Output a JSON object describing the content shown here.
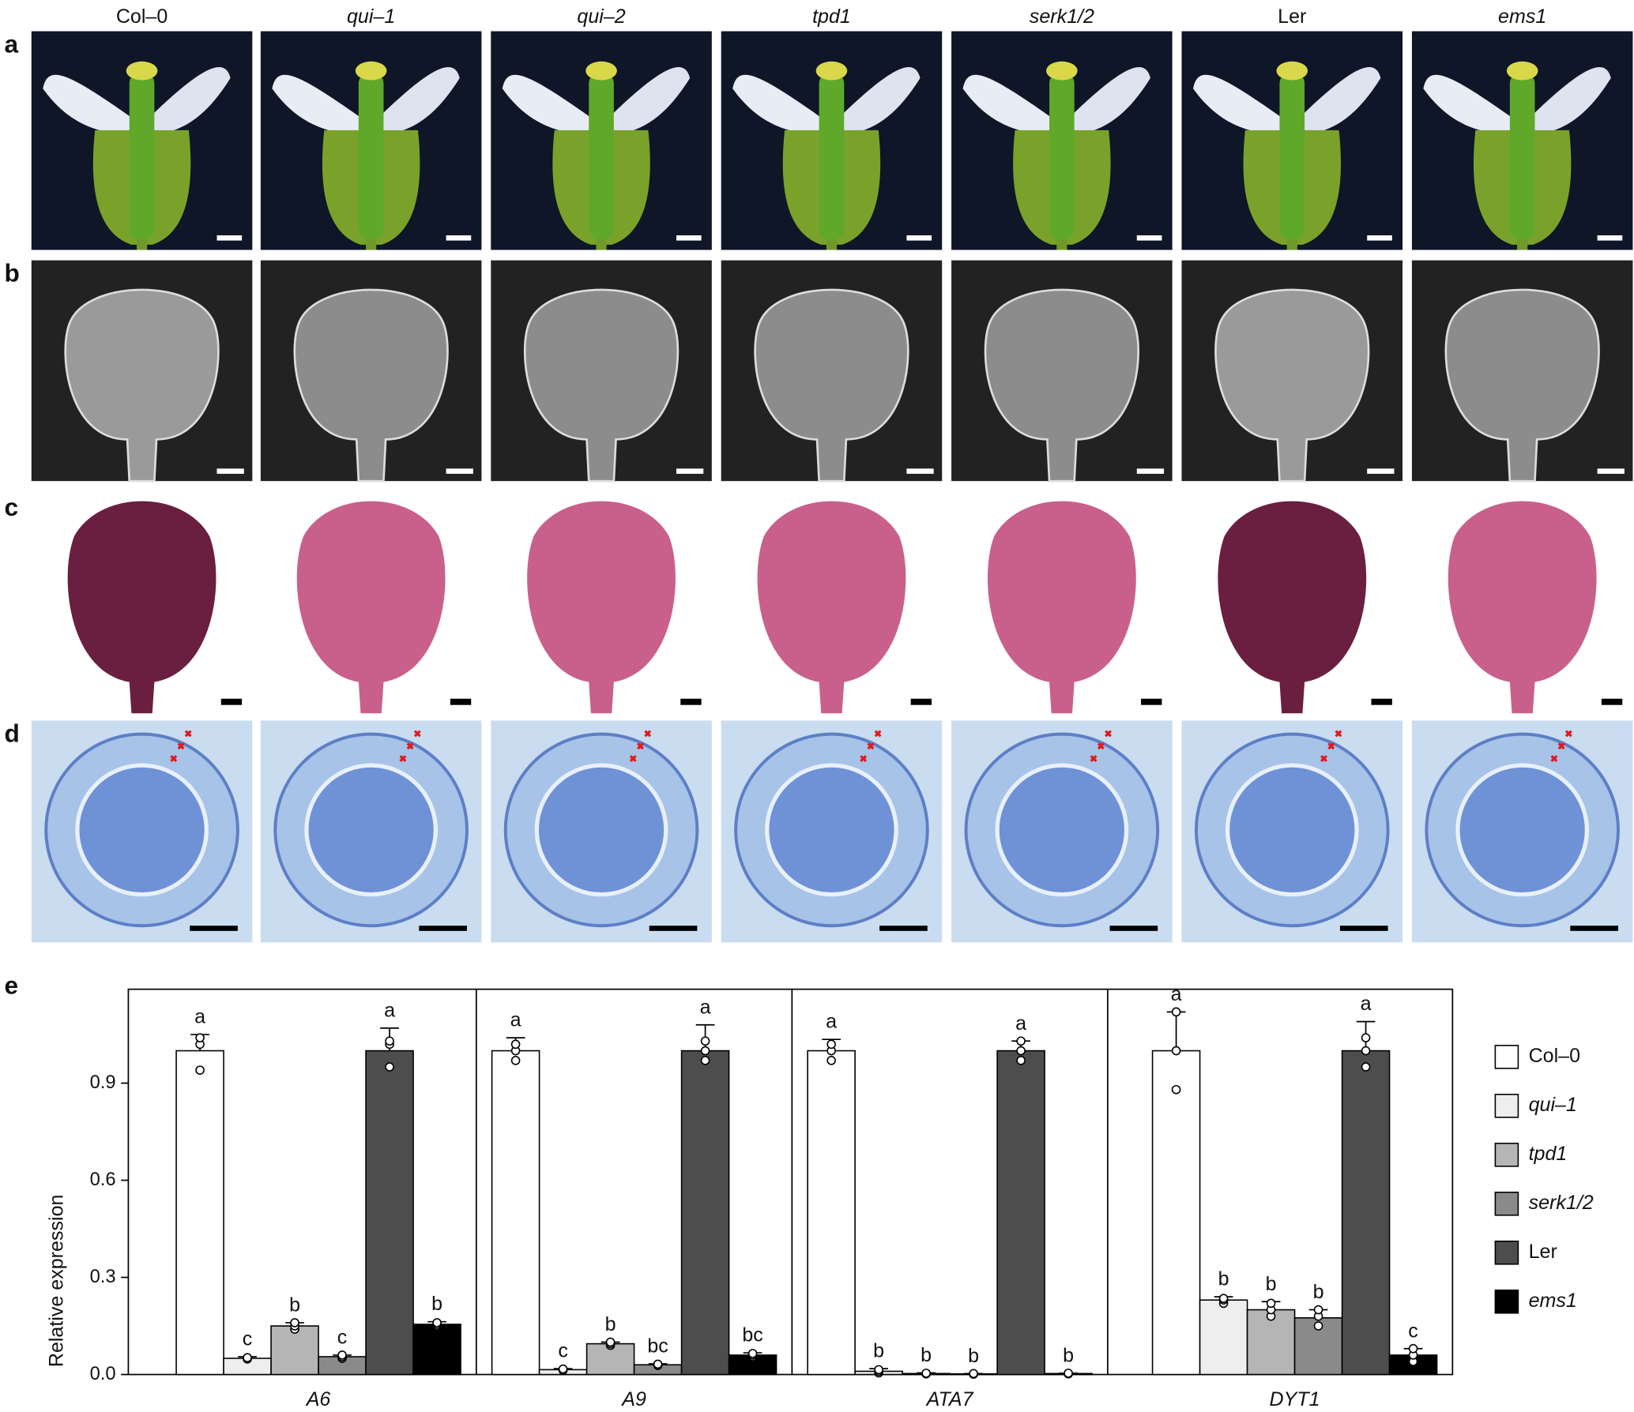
{
  "columns": [
    "Col–0",
    "qui–1",
    "qui–2",
    "tpd1",
    "serk1/2",
    "Ler",
    "ems1"
  ],
  "panels": [
    "a",
    "b",
    "c",
    "d",
    "e"
  ],
  "chart_data": {
    "type": "bar",
    "y_label": "Relative expression",
    "categories": [
      "A6",
      "A9",
      "ATA7",
      "DYT1"
    ],
    "ylim": [
      0,
      1.19
    ],
    "yticks": [
      {
        "value": 0,
        "label": "0.0"
      },
      0.3,
      0.6,
      0.9
    ],
    "legend": "right",
    "series": [
      {
        "name": "Col–0",
        "color": "#ffffff",
        "values": [
          1.0,
          1.0,
          1.0,
          1.0
        ],
        "errors": [
          0.05,
          0.04,
          0.035,
          0.12
        ],
        "points": [
          [
            0.94,
            1.02,
            1.04
          ],
          [
            0.97,
            1.0,
            1.02
          ],
          [
            0.97,
            1.0,
            1.02
          ],
          [
            0.88,
            1.0,
            1.12
          ]
        ],
        "significance": [
          "a",
          "a",
          "a",
          "a"
        ]
      },
      {
        "name": "qui–1",
        "color": "#eeeeee",
        "values": [
          0.05,
          0.015,
          0.01,
          0.23
        ],
        "errors": [
          0.005,
          0.003,
          0.008,
          0.01
        ],
        "points": [
          [
            0.048,
            0.05,
            0.052
          ],
          [
            0.013,
            0.015,
            0.017
          ],
          [
            0.005,
            0.01,
            0.015
          ],
          [
            0.22,
            0.23,
            0.235
          ]
        ],
        "significance": [
          "c",
          "c",
          "b",
          "b"
        ]
      },
      {
        "name": "tpd1",
        "color": "#b5b5b5",
        "values": [
          0.15,
          0.095,
          0.003,
          0.2
        ],
        "errors": [
          0.01,
          0.005,
          0.002,
          0.025
        ],
        "points": [
          [
            0.14,
            0.15,
            0.16
          ],
          [
            0.09,
            0.095,
            0.1
          ],
          [
            0.002,
            0.003,
            0.004
          ],
          [
            0.18,
            0.2,
            0.22
          ]
        ],
        "significance": [
          "b",
          "b",
          "b",
          "b"
        ]
      },
      {
        "name": "serk1/2",
        "color": "#8a8a8a",
        "values": [
          0.055,
          0.03,
          0.002,
          0.175
        ],
        "errors": [
          0.005,
          0.003,
          0.001,
          0.025
        ],
        "points": [
          [
            0.05,
            0.055,
            0.06
          ],
          [
            0.028,
            0.03,
            0.032
          ],
          [
            0.001,
            0.002,
            0.003
          ],
          [
            0.15,
            0.18,
            0.2
          ]
        ],
        "significance": [
          "c",
          "bc",
          "b",
          "b"
        ]
      },
      {
        "name": "Ler",
        "color": "#4d4d4d",
        "values": [
          1.0,
          1.0,
          1.0,
          1.0
        ],
        "errors": [
          0.07,
          0.08,
          0.03,
          0.09
        ],
        "points": [
          [
            0.95,
            1.02,
            1.03
          ],
          [
            0.97,
            1.0,
            1.03
          ],
          [
            0.97,
            1.0,
            1.03
          ],
          [
            0.95,
            1.0,
            1.04
          ]
        ],
        "significance": [
          "a",
          "a",
          "a",
          "a"
        ]
      },
      {
        "name": "ems1",
        "color": "#000000",
        "values": [
          0.155,
          0.06,
          0.003,
          0.06
        ],
        "errors": [
          0.008,
          0.007,
          0.001,
          0.02
        ],
        "points": [
          [
            0.15,
            0.155,
            0.16
          ],
          [
            0.055,
            0.06,
            0.065
          ],
          [
            0.002,
            0.003,
            0.004
          ],
          [
            0.04,
            0.06,
            0.08
          ]
        ],
        "significance": [
          "b",
          "bc",
          "b",
          "c"
        ]
      }
    ]
  }
}
